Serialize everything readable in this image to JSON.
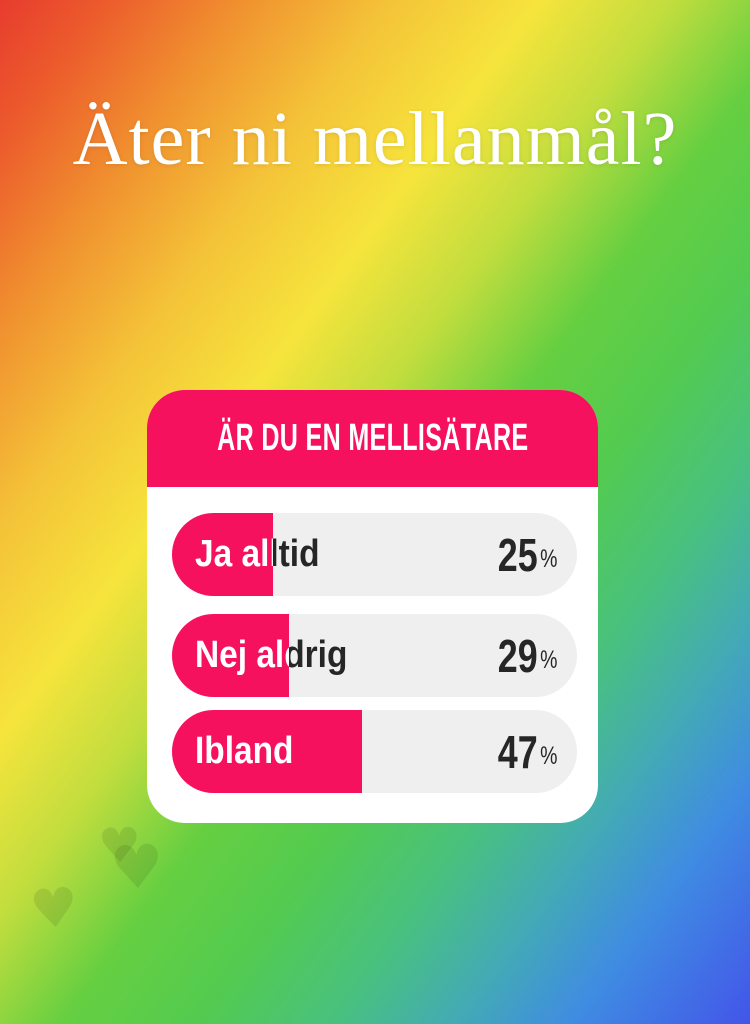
{
  "story": {
    "title": "Äter ni mellanmål?"
  },
  "poll": {
    "question": "ÄR DU EN MELLISÄTARE",
    "percent_symbol": "%",
    "options": [
      {
        "label": "Ja alltid",
        "value": "25",
        "percent": 25
      },
      {
        "label": "Nej aldrig",
        "value": "29",
        "percent": 29
      },
      {
        "label": "Ibland",
        "value": "47",
        "percent": 47
      }
    ]
  },
  "icons": {
    "heart": "♥"
  },
  "colors": {
    "poll_accent": "#f6115e",
    "bar_track": "#efefef",
    "text_dark": "#262626",
    "text_light": "#ffffff",
    "gradient_stops": [
      "#e73c2e",
      "#f0902f",
      "#f6e43c",
      "#53cb50",
      "#4355e9"
    ]
  },
  "chart_data": {
    "type": "bar",
    "title": "ÄR DU EN MELLISÄTARE",
    "categories": [
      "Ja alltid",
      "Nej aldrig",
      "Ibland"
    ],
    "values": [
      25,
      29,
      47
    ],
    "unit": "%",
    "xlim": [
      0,
      100
    ],
    "orientation": "horizontal",
    "legend": "off",
    "grid": "off"
  }
}
